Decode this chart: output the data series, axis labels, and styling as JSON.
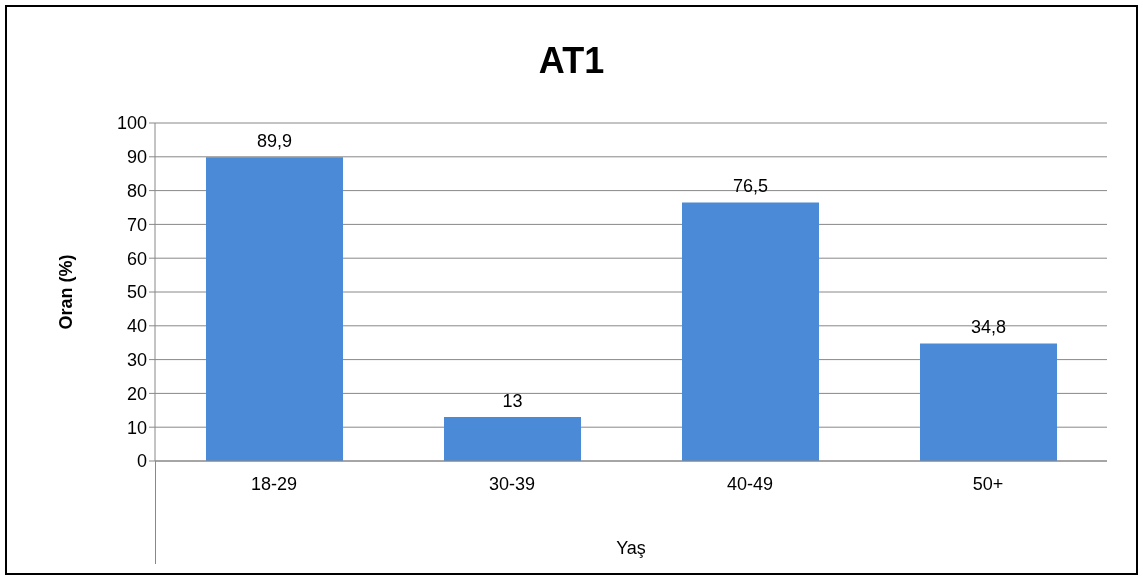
{
  "chart_data": {
    "type": "bar",
    "title": "AT1",
    "xlabel": "Yaş",
    "ylabel": "Oran (%)",
    "categories": [
      "18-29",
      "30-39",
      "40-49",
      "50+"
    ],
    "values": [
      89.9,
      13,
      76.5,
      34.8
    ],
    "color": "#4a8ad6",
    "value_labels": [
      "89,9",
      "13",
      "76,5",
      "34,8"
    ],
    "ylim": [
      0,
      100
    ],
    "yticks": [
      0,
      10,
      20,
      30,
      40,
      50,
      60,
      70,
      80,
      90,
      100
    ],
    "grid": "y"
  }
}
